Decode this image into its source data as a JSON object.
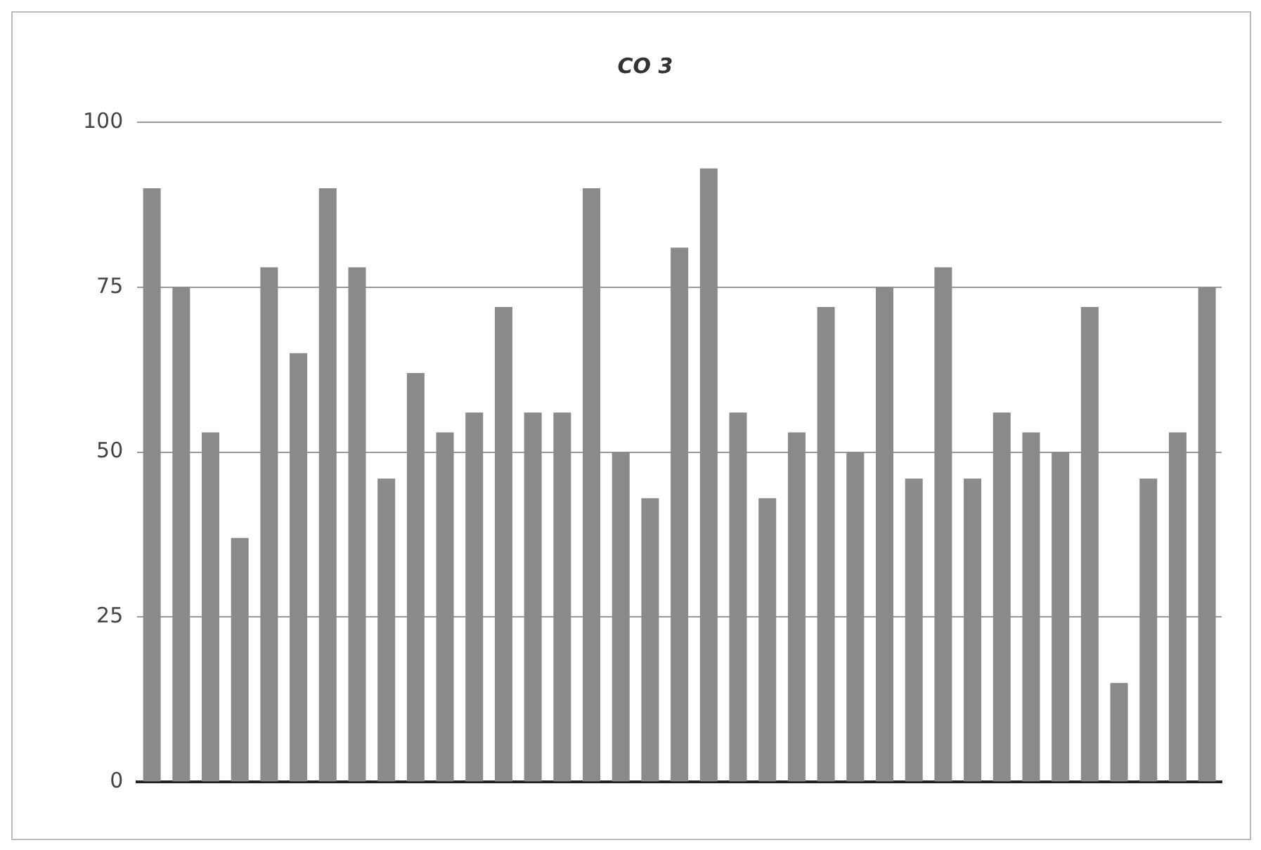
{
  "chart_data": {
    "type": "bar",
    "title": "CO 3",
    "categories": [
      null,
      null,
      null,
      null,
      null,
      null,
      null,
      null,
      null,
      null,
      null,
      null,
      null,
      null,
      null,
      null,
      null,
      null,
      null,
      null,
      null,
      null,
      null,
      null,
      null,
      null,
      null,
      null,
      null,
      null,
      null,
      null,
      null,
      null,
      null,
      null,
      null
    ],
    "values": [
      90,
      75,
      53,
      37,
      78,
      65,
      90,
      78,
      46,
      62,
      53,
      56,
      72,
      56,
      56,
      90,
      50,
      43,
      81,
      93,
      56,
      43,
      53,
      72,
      50,
      75,
      46,
      78,
      46,
      56,
      53,
      50,
      72,
      15,
      46,
      53,
      75
    ],
    "color": "#8a8a8a",
    "ylim": [
      0,
      100
    ],
    "yticks": [
      0,
      25,
      50,
      75,
      100
    ],
    "grid": "y"
  }
}
